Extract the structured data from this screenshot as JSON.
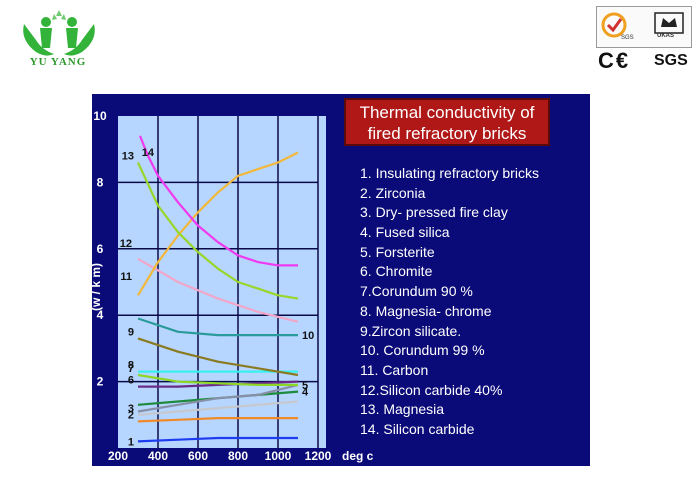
{
  "brand": {
    "name": "YU YANG",
    "logo_icon": "green-figures-logo-icon"
  },
  "certifications": {
    "sgs_caption": "SGS",
    "ukas_caption": "UKAS",
    "ce_mark": "C€",
    "sgs_mark": "SGS"
  },
  "chart_data": {
    "type": "line",
    "title": "Thermal conductivity of fired refractory bricks",
    "xlabel": "deg c",
    "ylabel": "(w / k m)",
    "xlim": [
      200,
      1200
    ],
    "ylim": [
      0,
      10
    ],
    "x_ticks": [
      "200",
      "400",
      "600",
      "800",
      "1000",
      "1200"
    ],
    "y_ticks": [
      "2",
      "4",
      "6",
      "8",
      "10"
    ],
    "grid": true,
    "legend_position": "right",
    "series": [
      {
        "name": "1. Insulating refractory bricks",
        "label": "1",
        "color": "#1e3cf0",
        "x": [
          300,
          500,
          700,
          900,
          1100
        ],
        "y": [
          0.2,
          0.25,
          0.3,
          0.3,
          0.3
        ]
      },
      {
        "name": "2. Zirconia",
        "label": "2",
        "color": "#f08a28",
        "x": [
          300,
          500,
          700,
          900,
          1100
        ],
        "y": [
          0.8,
          0.85,
          0.9,
          0.9,
          0.9
        ]
      },
      {
        "name": "3. Dry- pressed fire clay",
        "label": "3",
        "color": "#c8c8cc",
        "x": [
          300,
          500,
          700,
          900,
          1100
        ],
        "y": [
          1.0,
          1.1,
          1.2,
          1.3,
          1.4
        ]
      },
      {
        "name": "4. Fused silica",
        "label": "4",
        "color": "#1e8a3c",
        "x": [
          300,
          500,
          700,
          900,
          1100
        ],
        "y": [
          1.3,
          1.4,
          1.5,
          1.6,
          1.7
        ]
      },
      {
        "name": "5. Forsterite",
        "label": "5",
        "color": "#8890a8",
        "x": [
          300,
          500,
          700,
          900,
          1100
        ],
        "y": [
          1.1,
          1.3,
          1.5,
          1.6,
          1.9
        ]
      },
      {
        "name": "6. Chromite",
        "label": "6",
        "color": "#6a2a8a",
        "x": [
          300,
          500,
          700,
          900,
          1100
        ],
        "y": [
          1.85,
          1.85,
          1.9,
          1.95,
          2.0
        ]
      },
      {
        "name": "7.Corundum 90 %",
        "label": "7",
        "color": "#8cd628",
        "x": [
          300,
          500,
          700,
          900,
          1100
        ],
        "y": [
          2.2,
          2.0,
          1.95,
          1.9,
          1.9
        ]
      },
      {
        "name": "8. Magnesia- chrome",
        "label": "8",
        "color": "#38f0f0",
        "x": [
          300,
          500,
          700,
          900,
          1100
        ],
        "y": [
          2.3,
          2.3,
          2.3,
          2.3,
          2.3
        ]
      },
      {
        "name": "9.Zircon silicate.",
        "label": "9",
        "color": "#8a7a22",
        "x": [
          300,
          500,
          700,
          900,
          1100
        ],
        "y": [
          3.3,
          2.9,
          2.6,
          2.4,
          2.2
        ]
      },
      {
        "name": "10. Corundum 99 %",
        "label": "10",
        "color": "#2a9a9a",
        "x": [
          300,
          500,
          700,
          900,
          1100
        ],
        "y": [
          3.9,
          3.5,
          3.4,
          3.4,
          3.4
        ]
      },
      {
        "name": "11. Carbon",
        "label": "11",
        "color": "#f2a6c8",
        "x": [
          300,
          500,
          700,
          900,
          1100
        ],
        "y": [
          5.7,
          5.0,
          4.5,
          4.1,
          3.8
        ]
      },
      {
        "name": "12.Silicon carbide 40%",
        "label": "12",
        "color": "#f2b83a",
        "x": [
          300,
          400,
          500,
          600,
          700,
          800,
          900,
          1000,
          1100
        ],
        "y": [
          4.6,
          5.6,
          6.4,
          7.1,
          7.7,
          8.2,
          8.4,
          8.6,
          8.9
        ]
      },
      {
        "name": "13. Magnesia",
        "label": "13",
        "color": "#98d62a",
        "x": [
          300,
          400,
          500,
          600,
          700,
          800,
          900,
          1000,
          1100
        ],
        "y": [
          8.6,
          7.3,
          6.5,
          5.9,
          5.4,
          5.0,
          4.8,
          4.6,
          4.5
        ]
      },
      {
        "name": "14. Silicon carbide",
        "label": "14",
        "color": "#f03af0",
        "x": [
          310,
          350,
          400,
          500,
          600,
          700,
          800,
          900,
          1000,
          1100
        ],
        "y": [
          9.4,
          8.8,
          8.2,
          7.4,
          6.7,
          6.2,
          5.8,
          5.6,
          5.5,
          5.5
        ]
      }
    ]
  }
}
